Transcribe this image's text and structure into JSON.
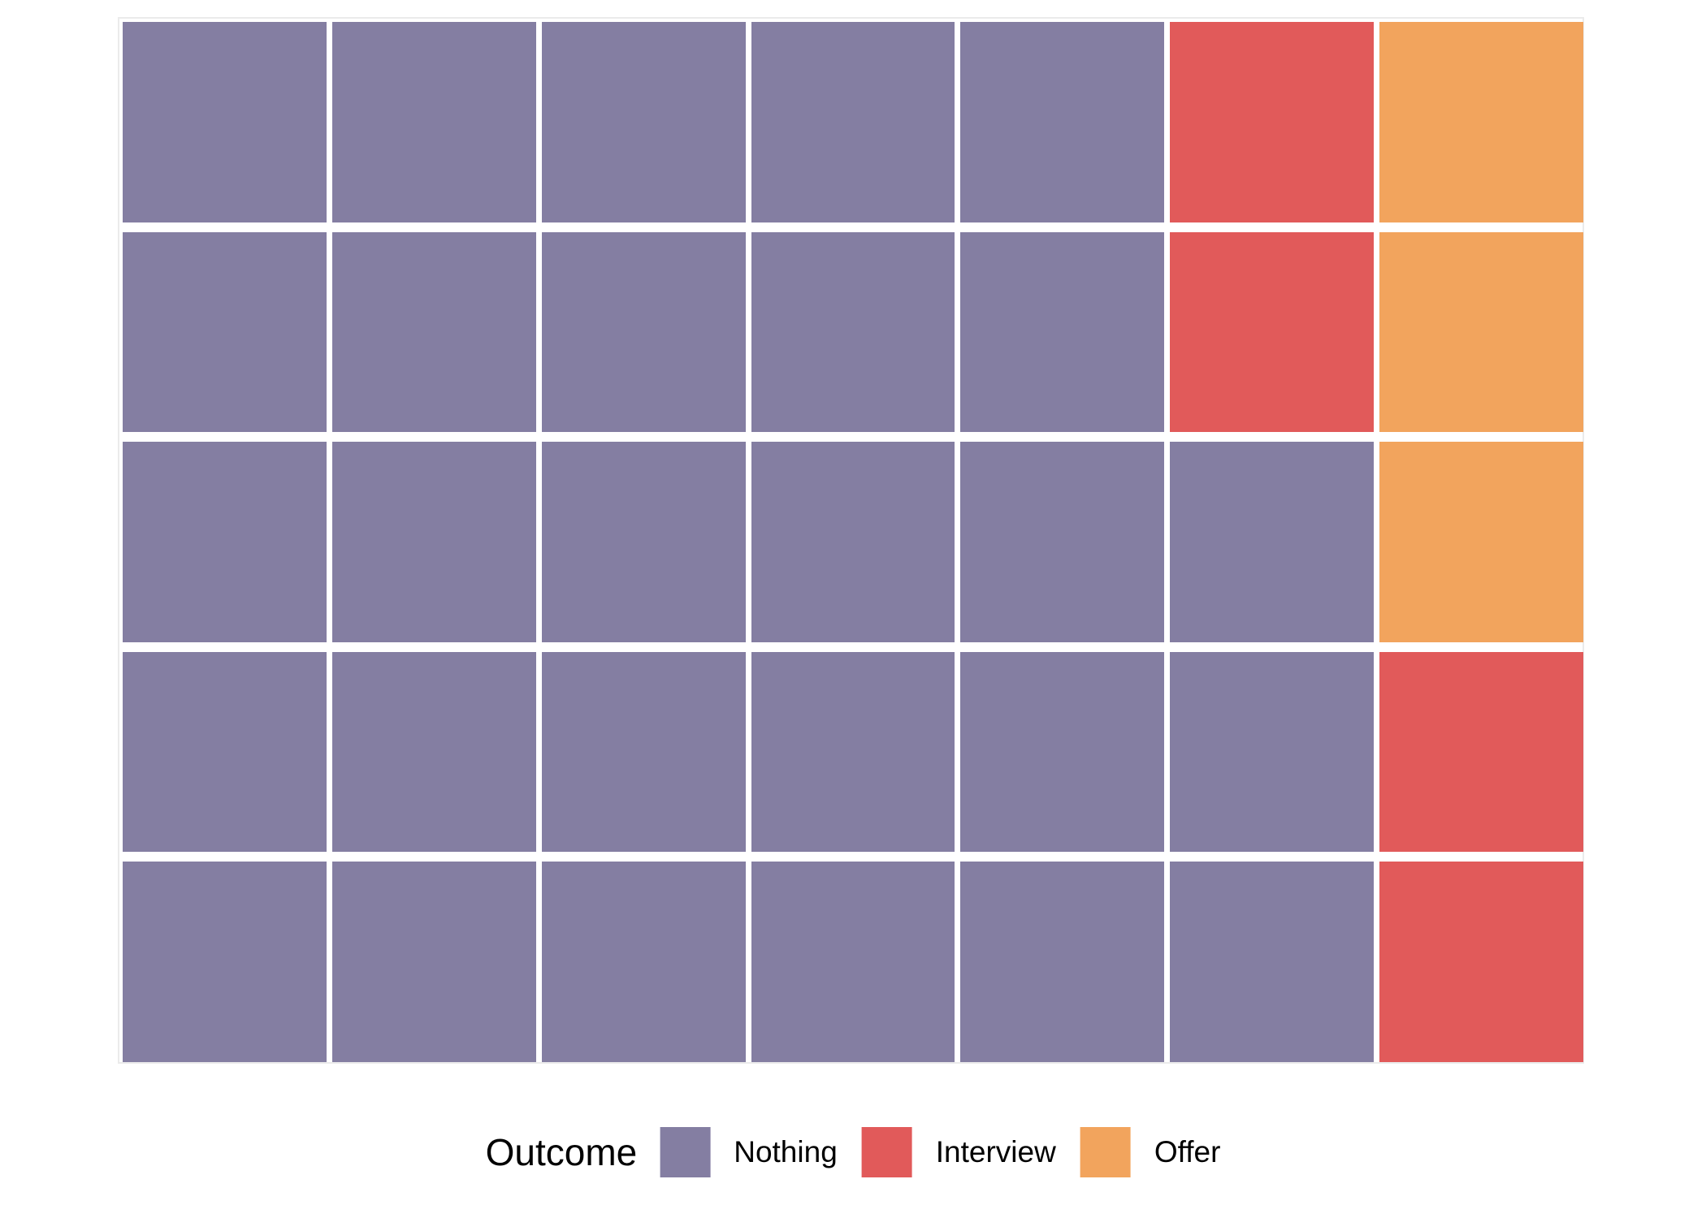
{
  "chart_data": {
    "type": "waffle",
    "rows": 5,
    "cols": 7,
    "total_cells": 35,
    "legend_title": "Outcome",
    "legend_position": "bottom",
    "grid_gap_color": "#ffffff",
    "panel_border_color": "#ebebeb",
    "series": [
      {
        "name": "Nothing",
        "value": 28,
        "color": "#847EA2"
      },
      {
        "name": "Interview",
        "value": 4,
        "color": "#E15A5A"
      },
      {
        "name": "Offer",
        "value": 3,
        "color": "#F2A45D"
      }
    ],
    "grid": [
      [
        "Nothing",
        "Nothing",
        "Nothing",
        "Nothing",
        "Nothing",
        "Interview",
        "Offer"
      ],
      [
        "Nothing",
        "Nothing",
        "Nothing",
        "Nothing",
        "Nothing",
        "Interview",
        "Offer"
      ],
      [
        "Nothing",
        "Nothing",
        "Nothing",
        "Nothing",
        "Nothing",
        "Nothing",
        "Offer"
      ],
      [
        "Nothing",
        "Nothing",
        "Nothing",
        "Nothing",
        "Nothing",
        "Nothing",
        "Interview"
      ],
      [
        "Nothing",
        "Nothing",
        "Nothing",
        "Nothing",
        "Nothing",
        "Nothing",
        "Interview"
      ]
    ]
  },
  "legend": {
    "title": "Outcome",
    "items": [
      {
        "label": "Nothing",
        "color": "#847EA2"
      },
      {
        "label": "Interview",
        "color": "#E15A5A"
      },
      {
        "label": "Offer",
        "color": "#F2A45D"
      }
    ]
  }
}
